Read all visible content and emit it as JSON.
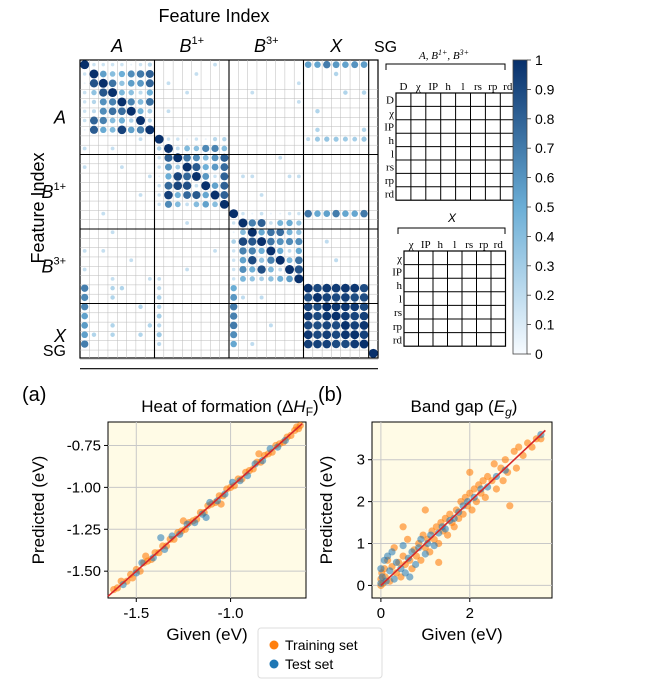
{
  "figure": {
    "matrix_title": "Feature Index",
    "matrix_ylabel": "Feature Index",
    "groups": [
      {
        "base": "A",
        "sup": ""
      },
      {
        "base": "B",
        "sup": "1+"
      },
      {
        "base": "B",
        "sup": "3+"
      },
      {
        "base": "X",
        "sup": ""
      },
      {
        "base": "SG",
        "sup": ""
      }
    ],
    "colorbar": {
      "ticks": [
        "1",
        "0.9",
        "0.8",
        "0.7",
        "0.6",
        "0.5",
        "0.4",
        "0.3",
        "0.2",
        "0.1",
        "0"
      ],
      "colors": {
        "low": "#f7fbff",
        "mid": "#6baed6",
        "high": "#08306b"
      }
    },
    "table1": {
      "title_parts": [
        "A, B",
        "1+",
        ", B",
        "3+"
      ],
      "cols": [
        "D",
        "χ",
        "IP",
        "h",
        "l",
        "rs",
        "rp",
        "rd"
      ],
      "rows": [
        "D",
        "χ",
        "IP",
        "h",
        "l",
        "rs",
        "rp",
        "rd"
      ]
    },
    "table2": {
      "title": "X",
      "cols": [
        "χ",
        "IP",
        "h",
        "l",
        "rs",
        "rp",
        "rd"
      ],
      "rows": [
        "χ",
        "IP",
        "h",
        "l",
        "rs",
        "rp",
        "rd"
      ]
    },
    "panel_a_label": "(a)",
    "panel_b_label": "(b)",
    "legend": {
      "training": "Training set",
      "test": "Test set",
      "training_color": "#ff7f0e",
      "test_color": "#1f77b4"
    },
    "plot_bg": "#fffbe6",
    "fit_line_color": "#d62728"
  },
  "chart_data": [
    {
      "type": "heatmap",
      "title": "Feature Index",
      "xlabel": "Feature Index",
      "ylabel": "Feature Index",
      "blocks": [
        {
          "group": "A",
          "size": 8
        },
        {
          "group": "B1+",
          "size": 8
        },
        {
          "group": "B3+",
          "size": 8
        },
        {
          "group": "X",
          "size": 7
        },
        {
          "group": "SG",
          "size": 1
        }
      ],
      "value_range": [
        0,
        1
      ],
      "colormap": "Blues"
    },
    {
      "type": "scatter",
      "title_parts": [
        "Heat of formation (Δ",
        "H",
        "F",
        ")"
      ],
      "xlabel": "Given (eV)",
      "ylabel": "Predicted (eV)",
      "xlim": [
        -1.65,
        -0.6
      ],
      "ylim": [
        -1.66,
        -0.61
      ],
      "xticks": [
        -1.5,
        -1.0
      ],
      "xtick_labels": [
        "-1.5",
        "-1.0"
      ],
      "yticks": [
        -1.5,
        -1.25,
        -1.0,
        -0.75
      ],
      "ytick_labels": [
        "-1.50",
        "-1.25",
        "-1.00",
        "-0.75"
      ],
      "grid": true,
      "fit": [
        [
          -1.65,
          -1.65
        ],
        [
          -0.62,
          -0.62
        ]
      ],
      "series": [
        {
          "name": "Training set",
          "points": [
            [
              -1.62,
              -1.61
            ],
            [
              -1.6,
              -1.6
            ],
            [
              -1.58,
              -1.56
            ],
            [
              -1.55,
              -1.56
            ],
            [
              -1.53,
              -1.52
            ],
            [
              -1.52,
              -1.54
            ],
            [
              -1.5,
              -1.49
            ],
            [
              -1.48,
              -1.5
            ],
            [
              -1.46,
              -1.45
            ],
            [
              -1.44,
              -1.44
            ],
            [
              -1.42,
              -1.43
            ],
            [
              -1.4,
              -1.39
            ],
            [
              -1.38,
              -1.39
            ],
            [
              -1.36,
              -1.35
            ],
            [
              -1.34,
              -1.35
            ],
            [
              -1.32,
              -1.31
            ],
            [
              -1.3,
              -1.31
            ],
            [
              -1.28,
              -1.27
            ],
            [
              -1.26,
              -1.26
            ],
            [
              -1.24,
              -1.25
            ],
            [
              -1.22,
              -1.21
            ],
            [
              -1.2,
              -1.2
            ],
            [
              -1.18,
              -1.19
            ],
            [
              -1.16,
              -1.15
            ],
            [
              -1.14,
              -1.15
            ],
            [
              -1.12,
              -1.11
            ],
            [
              -1.1,
              -1.1
            ],
            [
              -1.08,
              -1.09
            ],
            [
              -1.06,
              -1.05
            ],
            [
              -1.04,
              -1.05
            ],
            [
              -1.02,
              -1.01
            ],
            [
              -1.0,
              -1.0
            ],
            [
              -0.98,
              -0.99
            ],
            [
              -0.96,
              -0.95
            ],
            [
              -0.94,
              -0.95
            ],
            [
              -0.92,
              -0.91
            ],
            [
              -0.9,
              -0.9
            ],
            [
              -0.88,
              -0.89
            ],
            [
              -0.86,
              -0.85
            ],
            [
              -0.84,
              -0.85
            ],
            [
              -0.82,
              -0.81
            ],
            [
              -0.8,
              -0.8
            ],
            [
              -0.78,
              -0.79
            ],
            [
              -0.76,
              -0.75
            ],
            [
              -0.74,
              -0.74
            ],
            [
              -0.72,
              -0.73
            ],
            [
              -0.7,
              -0.7
            ],
            [
              -0.68,
              -0.69
            ],
            [
              -0.66,
              -0.66
            ],
            [
              -0.65,
              -0.64
            ],
            [
              -0.64,
              -0.65
            ],
            [
              -0.63,
              -0.63
            ],
            [
              -1.45,
              -1.41
            ],
            [
              -1.25,
              -1.2
            ],
            [
              -1.05,
              -1.1
            ],
            [
              -0.85,
              -0.8
            ]
          ]
        },
        {
          "name": "Test set",
          "points": [
            [
              -1.57,
              -1.58
            ],
            [
              -1.5,
              -1.51
            ],
            [
              -1.47,
              -1.45
            ],
            [
              -1.41,
              -1.42
            ],
            [
              -1.35,
              -1.37
            ],
            [
              -1.31,
              -1.29
            ],
            [
              -1.27,
              -1.28
            ],
            [
              -1.23,
              -1.22
            ],
            [
              -1.19,
              -1.21
            ],
            [
              -1.15,
              -1.16
            ],
            [
              -1.11,
              -1.09
            ],
            [
              -1.07,
              -1.08
            ],
            [
              -1.03,
              -1.04
            ],
            [
              -0.99,
              -0.97
            ],
            [
              -0.95,
              -0.96
            ],
            [
              -0.91,
              -0.93
            ],
            [
              -0.87,
              -0.86
            ],
            [
              -0.83,
              -0.84
            ],
            [
              -0.79,
              -0.77
            ],
            [
              -0.75,
              -0.76
            ],
            [
              -0.71,
              -0.72
            ],
            [
              -1.37,
              -1.3
            ],
            [
              -1.13,
              -1.18
            ]
          ]
        }
      ]
    },
    {
      "type": "scatter",
      "title_parts": [
        "Band gap (",
        "E",
        "g",
        ")"
      ],
      "xlabel": "Given (eV)",
      "ylabel": "Predicted (eV)",
      "xlim": [
        -0.2,
        3.85
      ],
      "ylim": [
        -0.3,
        3.9
      ],
      "xticks": [
        0,
        2
      ],
      "xtick_labels": [
        "0",
        "2"
      ],
      "yticks": [
        0,
        1,
        2,
        3
      ],
      "ytick_labels": [
        "0",
        "1",
        "2",
        "3"
      ],
      "grid": true,
      "fit": [
        [
          0,
          0
        ],
        [
          3.7,
          3.7
        ]
      ],
      "series": [
        {
          "name": "Training set",
          "points": [
            [
              0.0,
              0.0
            ],
            [
              0.0,
              0.15
            ],
            [
              0.02,
              0.3
            ],
            [
              0.05,
              0.05
            ],
            [
              0.08,
              0.4
            ],
            [
              0.1,
              0.2
            ],
            [
              0.15,
              0.6
            ],
            [
              0.2,
              0.1
            ],
            [
              0.25,
              0.45
            ],
            [
              0.3,
              0.9
            ],
            [
              0.35,
              0.3
            ],
            [
              0.4,
              0.55
            ],
            [
              0.45,
              0.2
            ],
            [
              0.5,
              0.7
            ],
            [
              0.55,
              0.5
            ],
            [
              0.6,
              1.1
            ],
            [
              0.65,
              0.6
            ],
            [
              0.7,
              0.4
            ],
            [
              0.75,
              0.85
            ],
            [
              0.8,
              0.7
            ],
            [
              0.85,
              1.0
            ],
            [
              0.9,
              0.6
            ],
            [
              0.95,
              1.2
            ],
            [
              1.0,
              0.9
            ],
            [
              1.05,
              1.1
            ],
            [
              1.1,
              0.8
            ],
            [
              1.15,
              1.3
            ],
            [
              1.2,
              1.1
            ],
            [
              1.25,
              1.4
            ],
            [
              1.3,
              1.0
            ],
            [
              1.35,
              1.5
            ],
            [
              1.4,
              1.3
            ],
            [
              1.45,
              1.6
            ],
            [
              1.5,
              1.2
            ],
            [
              1.55,
              1.7
            ],
            [
              1.6,
              1.5
            ],
            [
              1.65,
              1.4
            ],
            [
              1.7,
              1.8
            ],
            [
              1.75,
              1.6
            ],
            [
              1.8,
              2.0
            ],
            [
              1.85,
              1.7
            ],
            [
              1.9,
              2.1
            ],
            [
              1.95,
              1.9
            ],
            [
              2.0,
              2.2
            ],
            [
              2.05,
              1.8
            ],
            [
              2.1,
              2.3
            ],
            [
              2.15,
              2.0
            ],
            [
              2.2,
              2.4
            ],
            [
              2.25,
              2.2
            ],
            [
              2.3,
              2.5
            ],
            [
              2.35,
              2.1
            ],
            [
              2.4,
              2.6
            ],
            [
              2.5,
              2.5
            ],
            [
              2.55,
              2.9
            ],
            [
              2.6,
              2.3
            ],
            [
              2.7,
              2.8
            ],
            [
              2.75,
              2.5
            ],
            [
              2.8,
              3.0
            ],
            [
              2.85,
              2.7
            ],
            [
              2.9,
              1.9
            ],
            [
              3.0,
              3.2
            ],
            [
              3.05,
              2.8
            ],
            [
              3.1,
              3.3
            ],
            [
              3.2,
              3.1
            ],
            [
              3.3,
              3.4
            ],
            [
              3.4,
              3.3
            ],
            [
              3.5,
              3.5
            ],
            [
              3.6,
              3.5
            ],
            [
              1.3,
              0.55
            ],
            [
              0.5,
              1.4
            ],
            [
              2.0,
              2.7
            ],
            [
              1.0,
              1.8
            ]
          ]
        },
        {
          "name": "Test set",
          "points": [
            [
              0.0,
              0.05
            ],
            [
              0.0,
              0.4
            ],
            [
              0.03,
              0.2
            ],
            [
              0.08,
              0.6
            ],
            [
              0.12,
              0.1
            ],
            [
              0.2,
              0.35
            ],
            [
              0.25,
              0.8
            ],
            [
              0.3,
              0.15
            ],
            [
              0.35,
              0.55
            ],
            [
              0.45,
              0.4
            ],
            [
              0.5,
              0.95
            ],
            [
              0.55,
              0.3
            ],
            [
              0.62,
              0.65
            ],
            [
              0.7,
              0.8
            ],
            [
              0.78,
              0.5
            ],
            [
              0.85,
              0.9
            ],
            [
              0.9,
              1.1
            ],
            [
              1.0,
              0.75
            ],
            [
              1.05,
              1.0
            ],
            [
              1.12,
              1.2
            ],
            [
              1.2,
              0.95
            ],
            [
              1.3,
              1.25
            ],
            [
              1.38,
              1.4
            ],
            [
              1.45,
              1.35
            ],
            [
              1.55,
              1.55
            ],
            [
              1.65,
              1.6
            ],
            [
              1.75,
              1.75
            ],
            [
              1.85,
              1.9
            ],
            [
              1.95,
              2.0
            ],
            [
              2.1,
              2.1
            ],
            [
              2.25,
              2.3
            ],
            [
              2.4,
              2.35
            ],
            [
              2.6,
              2.6
            ],
            [
              2.8,
              2.75
            ],
            [
              3.6,
              3.6
            ],
            [
              0.15,
              0.7
            ],
            [
              0.65,
              0.2
            ]
          ]
        }
      ]
    }
  ]
}
